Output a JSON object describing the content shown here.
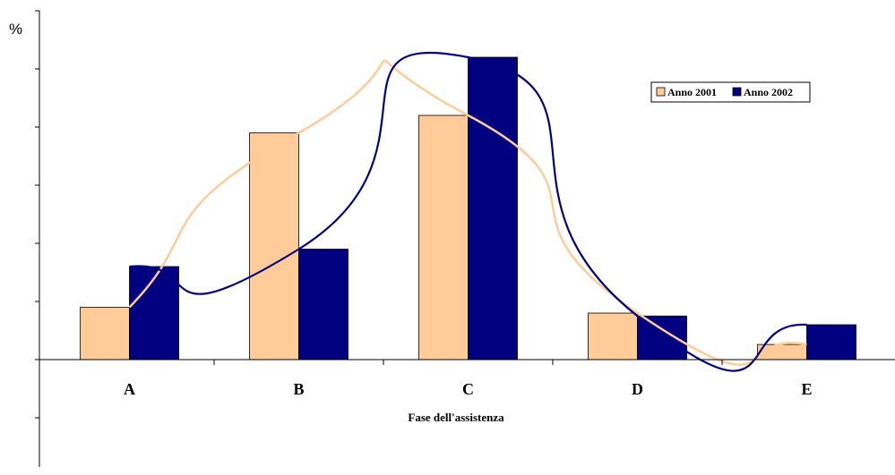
{
  "chart_data": {
    "type": "bar",
    "title": "",
    "xlabel": "Fase dell'assistenza",
    "ylabel": "%",
    "categories": [
      "A",
      "B",
      "C",
      "D",
      "E"
    ],
    "ylim": [
      -18,
      60
    ],
    "series": [
      {
        "name": "Anno 2001",
        "values": [
          9,
          39,
          42,
          8,
          2.6
        ],
        "color": "#ffcc99",
        "smooth_line_color": "#ffcc99"
      },
      {
        "name": "Anno 2002",
        "values": [
          16,
          19,
          52,
          7.5,
          6
        ],
        "color": "#000080",
        "smooth_line_color": "#000080"
      }
    ],
    "legend_position": "top-right",
    "grid": false,
    "y_tick_labels": false
  }
}
